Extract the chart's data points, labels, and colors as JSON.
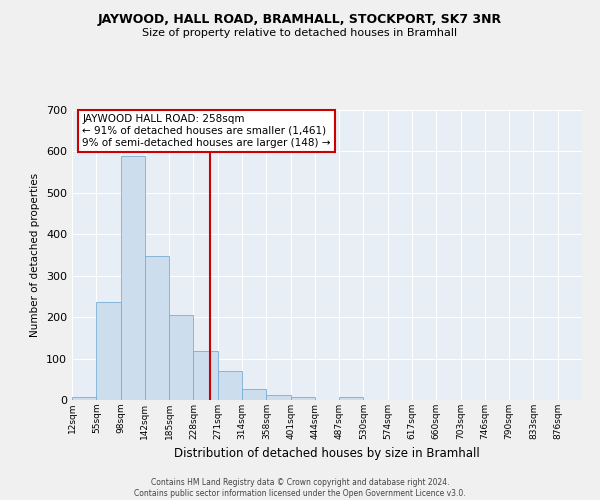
{
  "title": "JAYWOOD, HALL ROAD, BRAMHALL, STOCKPORT, SK7 3NR",
  "subtitle": "Size of property relative to detached houses in Bramhall",
  "xlabel": "Distribution of detached houses by size in Bramhall",
  "ylabel": "Number of detached properties",
  "bin_labels": [
    "12sqm",
    "55sqm",
    "98sqm",
    "142sqm",
    "185sqm",
    "228sqm",
    "271sqm",
    "314sqm",
    "358sqm",
    "401sqm",
    "444sqm",
    "487sqm",
    "530sqm",
    "574sqm",
    "617sqm",
    "660sqm",
    "703sqm",
    "746sqm",
    "790sqm",
    "833sqm",
    "876sqm"
  ],
  "bar_values": [
    8,
    237,
    590,
    348,
    204,
    118,
    70,
    27,
    13,
    8,
    0,
    7,
    0,
    0,
    0,
    0,
    0,
    0,
    0,
    0,
    0
  ],
  "bar_color": "#ccdded",
  "bar_edge_color": "#7aadd4",
  "annotation_title": "JAYWOOD HALL ROAD: 258sqm",
  "annotation_line1": "← 91% of detached houses are smaller (1,461)",
  "annotation_line2": "9% of semi-detached houses are larger (148) →",
  "annotation_box_facecolor": "#ffffff",
  "annotation_box_edgecolor": "#cc0000",
  "vline_color": "#cc0000",
  "vline_x_index": 6.35,
  "ylim": [
    0,
    700
  ],
  "yticks": [
    0,
    100,
    200,
    300,
    400,
    500,
    600,
    700
  ],
  "background_color": "#e8eef5",
  "fig_facecolor": "#f0f0f0",
  "footer_line1": "Contains HM Land Registry data © Crown copyright and database right 2024.",
  "footer_line2": "Contains public sector information licensed under the Open Government Licence v3.0."
}
